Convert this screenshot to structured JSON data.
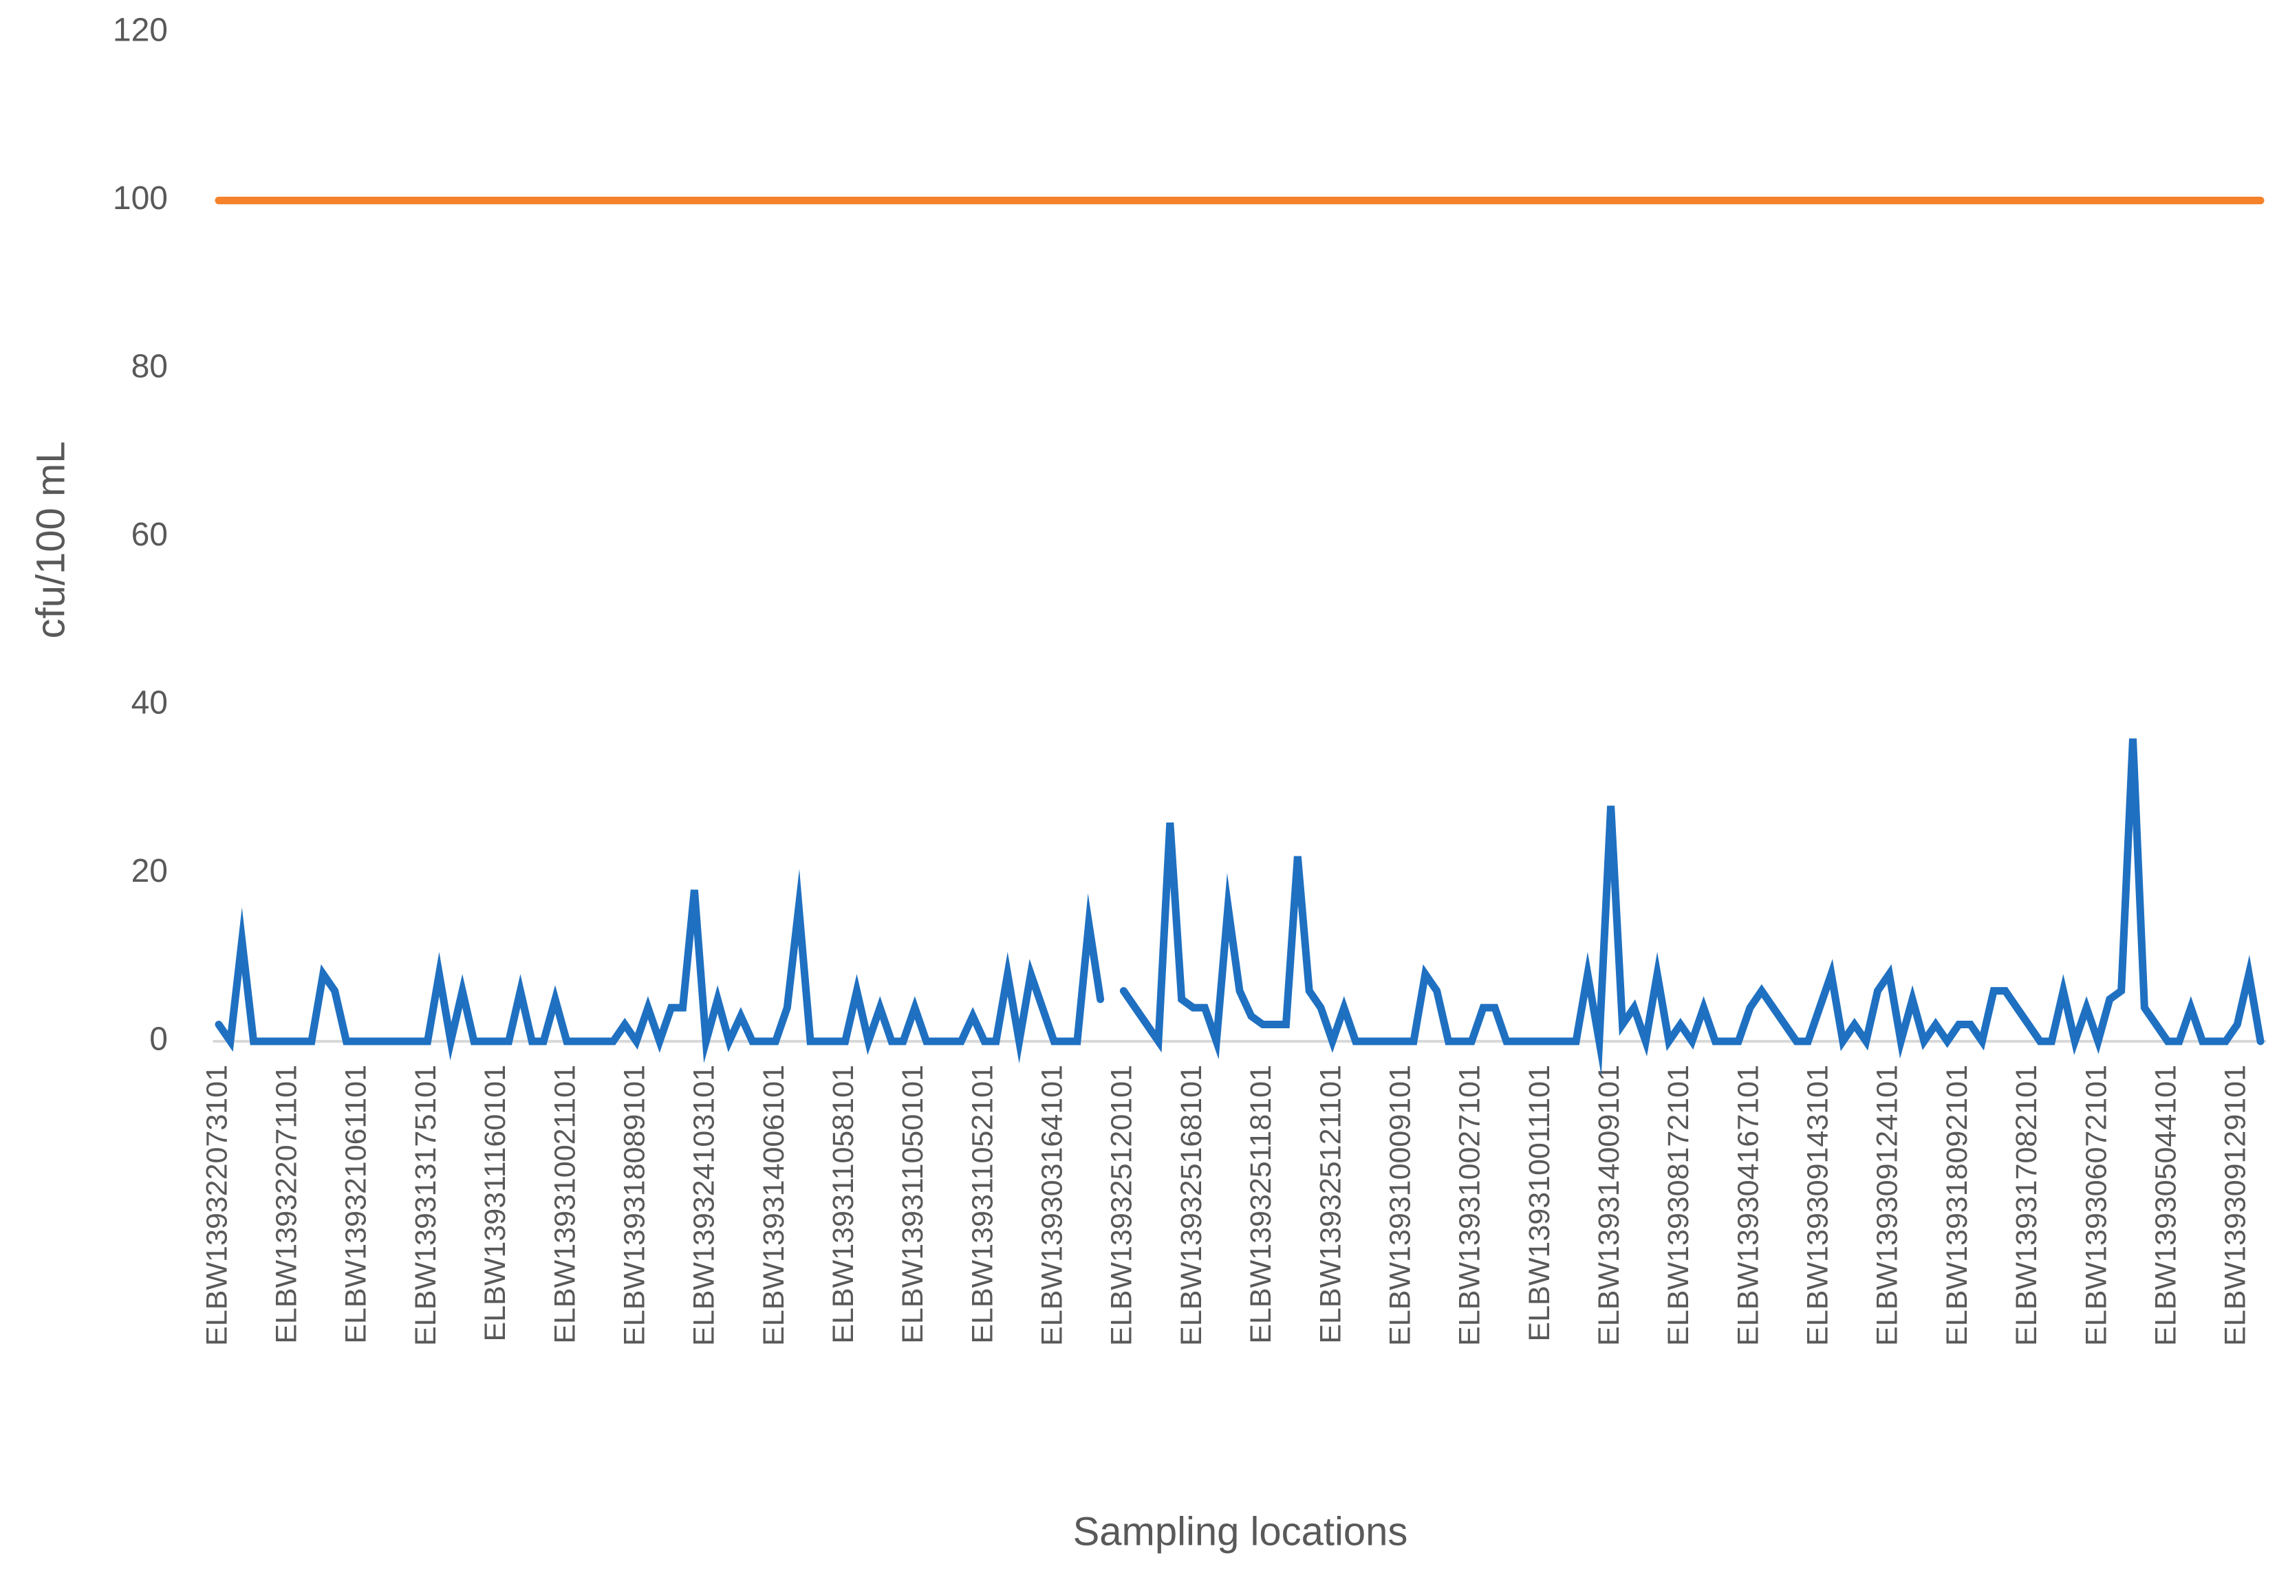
{
  "chart_data": {
    "type": "line",
    "y_axis_label": "cfu/100 mL",
    "x_axis_label": "Sampling locations",
    "ylim": [
      0,
      120
    ],
    "yticks": [
      0,
      20,
      40,
      60,
      80,
      100,
      120
    ],
    "grid": false,
    "categories": [
      "ELBW139322073101",
      null,
      null,
      null,
      null,
      null,
      "ELBW139322071101",
      null,
      null,
      null,
      null,
      null,
      "ELBW139321061101",
      null,
      null,
      null,
      null,
      null,
      "ELBW139313175101",
      null,
      null,
      null,
      null,
      null,
      "ELBW139311160101",
      null,
      null,
      null,
      null,
      null,
      "ELBW139310021101",
      null,
      null,
      null,
      null,
      null,
      "ELBW139318089101",
      null,
      null,
      null,
      null,
      null,
      "ELBW139324103101",
      null,
      null,
      null,
      null,
      null,
      "ELBW139314006101",
      null,
      null,
      null,
      null,
      null,
      "ELBW139311058101",
      null,
      null,
      null,
      null,
      null,
      "ELBW139311050101",
      null,
      null,
      null,
      null,
      null,
      "ELBW139311052101",
      null,
      null,
      null,
      null,
      null,
      "ELBW139303164101",
      null,
      null,
      null,
      null,
      null,
      "ELBW139325120101",
      null,
      null,
      null,
      null,
      null,
      "ELBW139325168101",
      null,
      null,
      null,
      null,
      null,
      "ELBW139325118101",
      null,
      null,
      null,
      null,
      null,
      "ELBW139325121101",
      null,
      null,
      null,
      null,
      null,
      "ELBW139310009101",
      null,
      null,
      null,
      null,
      null,
      "ELBW139310027101",
      null,
      null,
      null,
      null,
      null,
      "ELBW139310011101",
      null,
      null,
      null,
      null,
      null,
      "ELBW139314009101",
      null,
      null,
      null,
      null,
      null,
      "ELBW139308172101",
      null,
      null,
      null,
      null,
      null,
      "ELBW139304167101",
      null,
      null,
      null,
      null,
      null,
      "ELBW139309143101",
      null,
      null,
      null,
      null,
      null,
      "ELBW139309124101",
      null,
      null,
      null,
      null,
      null,
      "ELBW139318092101",
      null,
      null,
      null,
      null,
      null,
      "ELBW139317082101",
      null,
      null,
      null,
      null,
      null,
      "ELBW139306072101",
      null,
      null,
      null,
      null,
      null,
      "ELBW139305044101",
      null,
      null,
      null,
      null,
      null,
      "ELBW139309129101",
      null,
      null
    ],
    "series": [
      {
        "color": "#1f70c1",
        "values": [
          2,
          0,
          12,
          0,
          0,
          0,
          0,
          0,
          0,
          8,
          6,
          0,
          0,
          0,
          0,
          0,
          0,
          0,
          0,
          8,
          0,
          6,
          0,
          0,
          0,
          0,
          6,
          0,
          0,
          5,
          0,
          0,
          0,
          0,
          0,
          2,
          0,
          4,
          0,
          4,
          4,
          18,
          0,
          5,
          0,
          3,
          0,
          0,
          0,
          4,
          16,
          0,
          0,
          0,
          0,
          6,
          0,
          4,
          0,
          0,
          4,
          0,
          0,
          0,
          0,
          3,
          0,
          0,
          8,
          0,
          8,
          4,
          0,
          0,
          0,
          14,
          5,
          null,
          6,
          4,
          2,
          0,
          26,
          5,
          4,
          4,
          0,
          16,
          6,
          3,
          2,
          2,
          2,
          22,
          6,
          4,
          0,
          4,
          0,
          0,
          0,
          0,
          0,
          0,
          8,
          6,
          0,
          0,
          0,
          4,
          4,
          0,
          0,
          0,
          0,
          0,
          0,
          0,
          8,
          0,
          28,
          2,
          4,
          0,
          8,
          0,
          2,
          0,
          4,
          0,
          0,
          0,
          4,
          6,
          4,
          2,
          0,
          0,
          4,
          8,
          0,
          2,
          0,
          6,
          8,
          0,
          5,
          0,
          2,
          0,
          2,
          2,
          0,
          6,
          6,
          4,
          2,
          0,
          0,
          6,
          0,
          4,
          0,
          5,
          6,
          36,
          4,
          2,
          0,
          0,
          4,
          0,
          0,
          0,
          2,
          8,
          0
        ]
      },
      {
        "color": "#f5822a",
        "values": [
          100,
          100,
          100,
          100,
          100,
          100,
          100,
          100,
          100,
          100,
          100,
          100,
          100,
          100,
          100,
          100,
          100,
          100,
          100,
          100,
          100,
          100,
          100,
          100,
          100,
          100,
          100,
          100,
          100,
          100,
          100,
          100,
          100,
          100,
          100,
          100,
          100,
          100,
          100,
          100,
          100,
          100,
          100,
          100,
          100,
          100,
          100,
          100,
          100,
          100,
          100,
          100,
          100,
          100,
          100,
          100,
          100,
          100,
          100,
          100,
          100,
          100,
          100,
          100,
          100,
          100,
          100,
          100,
          100,
          100,
          100,
          100,
          100,
          100,
          100,
          100,
          100,
          100,
          100,
          100,
          100,
          100,
          100,
          100,
          100,
          100,
          100,
          100,
          100,
          100,
          100,
          100,
          100,
          100,
          100,
          100,
          100,
          100,
          100,
          100,
          100,
          100,
          100,
          100,
          100,
          100,
          100,
          100,
          100,
          100,
          100,
          100,
          100,
          100,
          100,
          100,
          100,
          100,
          100,
          100,
          100,
          100,
          100,
          100,
          100,
          100,
          100,
          100,
          100,
          100,
          100,
          100,
          100,
          100,
          100,
          100,
          100,
          100,
          100,
          100,
          100,
          100,
          100,
          100,
          100,
          100,
          100,
          100,
          100,
          100,
          100,
          100,
          100,
          100,
          100,
          100,
          100,
          100,
          100,
          100,
          100,
          100,
          100,
          100,
          100,
          100,
          100,
          100,
          100,
          100,
          100,
          100,
          100,
          100,
          100,
          100,
          100
        ]
      }
    ]
  }
}
